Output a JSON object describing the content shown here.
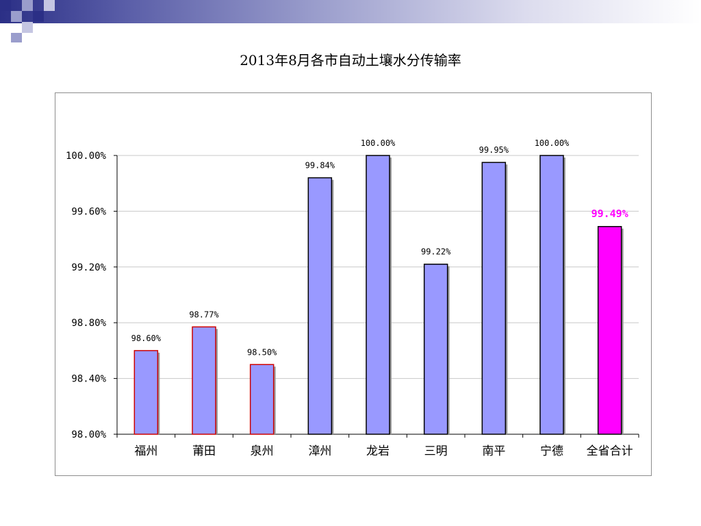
{
  "slide": {
    "title": "2013年8月各市自动土壤水分传输率"
  },
  "colors": {
    "bar_fill": "#9999ff",
    "bar_border_default": "#000000",
    "bar_border_highlight_low": "#cc0000",
    "total_fill": "#ff00ff",
    "total_label": "#ff00ff",
    "grid": "#c8c8c8",
    "axis": "#000000",
    "deco_dark": "#2b2f86",
    "deco_light": "#9a9dcc"
  },
  "chart_data": {
    "type": "bar",
    "title": "2013年8月各市自动土壤水分传输率",
    "categories": [
      "福州",
      "莆田",
      "泉州",
      "漳州",
      "龙岩",
      "三明",
      "南平",
      "宁德",
      "全省合计"
    ],
    "values": [
      98.6,
      98.77,
      98.5,
      99.84,
      100.0,
      99.22,
      99.95,
      100.0,
      99.49
    ],
    "data_labels": [
      "98.60%",
      "98.77%",
      "98.50%",
      "99.84%",
      "100.00%",
      "99.22%",
      "99.95%",
      "100.00%",
      "99.49%"
    ],
    "ylim": [
      98.0,
      100.0
    ],
    "yticks": [
      98.0,
      98.4,
      98.8,
      99.2,
      99.6,
      100.0
    ],
    "ytick_labels": [
      "98.00%",
      "98.40%",
      "98.80%",
      "99.20%",
      "99.60%",
      "100.00%"
    ],
    "xlabel": "",
    "ylabel": "",
    "grid": true,
    "legend": "none",
    "highlight_index": 8
  }
}
